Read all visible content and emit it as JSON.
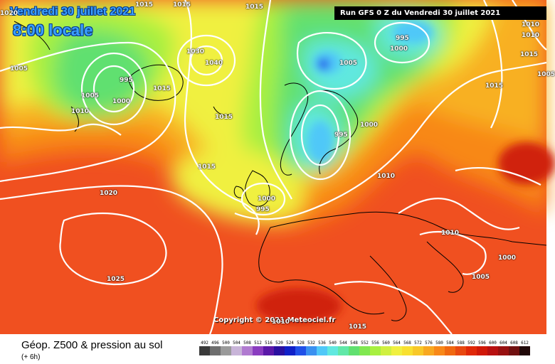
{
  "header": {
    "date": "Vendredi 30 juillet 2021",
    "time": "8:00 locale",
    "run": "Run GFS 0 Z du Vendredi 30 juillet 2021"
  },
  "copyright": "Copyright © 2021 Meteociel.fr",
  "footer": {
    "title": "Géop. Z500 & pression au sol",
    "subtitle": "(+ 6h)"
  },
  "isobar_labels": [
    {
      "id": "a",
      "text": "1015"
    },
    {
      "id": "b",
      "text": "1015"
    },
    {
      "id": "c",
      "text": "1015"
    },
    {
      "id": "d",
      "text": "1020"
    },
    {
      "id": "e",
      "text": "1005"
    },
    {
      "id": "f",
      "text": "1005"
    },
    {
      "id": "g",
      "text": "995"
    },
    {
      "id": "h",
      "text": "1000"
    },
    {
      "id": "i",
      "text": "1010"
    },
    {
      "id": "j",
      "text": "1030"
    },
    {
      "id": "k",
      "text": "1040"
    },
    {
      "id": "l",
      "text": "1015"
    },
    {
      "id": "m",
      "text": "1015"
    },
    {
      "id": "n",
      "text": "1015"
    },
    {
      "id": "o",
      "text": "995"
    },
    {
      "id": "p",
      "text": "1000"
    },
    {
      "id": "q",
      "text": "1005"
    },
    {
      "id": "r",
      "text": "995"
    },
    {
      "id": "s",
      "text": "1000"
    },
    {
      "id": "t",
      "text": "1010"
    },
    {
      "id": "u",
      "text": "1020"
    },
    {
      "id": "v",
      "text": "1000"
    },
    {
      "id": "w",
      "text": "995"
    },
    {
      "id": "x",
      "text": "1010"
    },
    {
      "id": "y",
      "text": "1025"
    },
    {
      "id": "z",
      "text": "1015"
    },
    {
      "id": "aa",
      "text": "1010"
    },
    {
      "id": "ab",
      "text": "1000"
    },
    {
      "id": "ac",
      "text": "1005"
    },
    {
      "id": "ad",
      "text": "1015"
    },
    {
      "id": "ae",
      "text": "1010"
    },
    {
      "id": "af",
      "text": "1010"
    },
    {
      "id": "ag",
      "text": "1015"
    },
    {
      "id": "ah",
      "text": "1005"
    }
  ],
  "legend": [
    {
      "v": "492",
      "c": "#3a3a3a"
    },
    {
      "v": "496",
      "c": "#6e6e6e"
    },
    {
      "v": "500",
      "c": "#9a9a9a"
    },
    {
      "v": "504",
      "c": "#c8b4d8"
    },
    {
      "v": "508",
      "c": "#b07ad0"
    },
    {
      "v": "512",
      "c": "#8a3cc0"
    },
    {
      "v": "516",
      "c": "#5a18a8"
    },
    {
      "v": "520",
      "c": "#2a10a0"
    },
    {
      "v": "524",
      "c": "#1020c8"
    },
    {
      "v": "528",
      "c": "#2050e8"
    },
    {
      "v": "532",
      "c": "#3a90f0"
    },
    {
      "v": "536",
      "c": "#50c8f8"
    },
    {
      "v": "540",
      "c": "#60e8e0"
    },
    {
      "v": "544",
      "c": "#60e8a8"
    },
    {
      "v": "548",
      "c": "#60e070"
    },
    {
      "v": "552",
      "c": "#80e850"
    },
    {
      "v": "556",
      "c": "#a8f040"
    },
    {
      "v": "560",
      "c": "#d0f040"
    },
    {
      "v": "564",
      "c": "#f0f040"
    },
    {
      "v": "568",
      "c": "#f8e030"
    },
    {
      "v": "572",
      "c": "#f8c828"
    },
    {
      "v": "576",
      "c": "#f8a820"
    },
    {
      "v": "580",
      "c": "#f88818"
    },
    {
      "v": "584",
      "c": "#f06810"
    },
    {
      "v": "588",
      "c": "#e84810"
    },
    {
      "v": "592",
      "c": "#e02808"
    },
    {
      "v": "596",
      "c": "#d01808"
    },
    {
      "v": "600",
      "c": "#b81010"
    },
    {
      "v": "604",
      "c": "#981010"
    },
    {
      "v": "608",
      "c": "#701010"
    },
    {
      "v": "612",
      "c": "#200808"
    }
  ]
}
